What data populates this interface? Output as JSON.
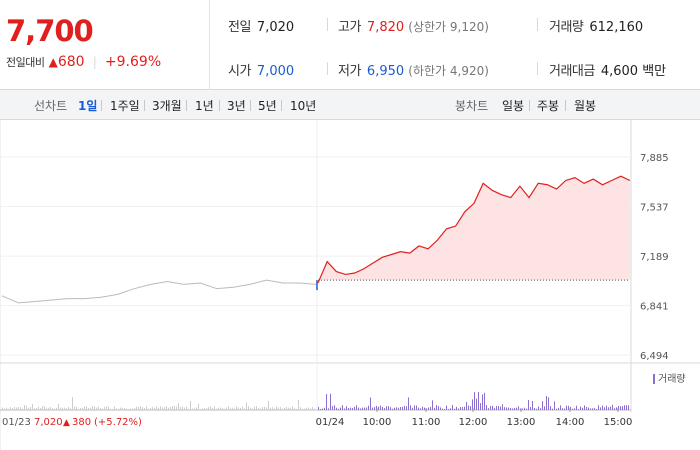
{
  "header": {
    "price": "7,700",
    "change_label": "전일대비",
    "change_arrow": "▲",
    "change_amount": "680",
    "change_percent": "+9.69%",
    "prev_close_label": "전일",
    "prev_close": "7,020",
    "high_label": "고가",
    "high": "7,820",
    "upper_limit": "(상한가 9,120)",
    "volume_label": "거래량",
    "volume": "612,160",
    "open_label": "시가",
    "open": "7,000",
    "low_label": "저가",
    "low": "6,950",
    "lower_limit": "(하한가 4,920)",
    "trade_value_label": "거래대금",
    "trade_value": "4,600 백만"
  },
  "toolbar": {
    "line_label": "선차트",
    "line_periods": [
      "1일",
      "1주일",
      "3개월",
      "1년",
      "3년",
      "5년",
      "10년"
    ],
    "active_period": "1일",
    "candle_label": "봉차트",
    "candle_periods": [
      "일봉",
      "주봉",
      "월봉"
    ]
  },
  "chart_data": {
    "type": "line",
    "y_ticks": [
      "7,885",
      "7,537",
      "7,189",
      "6,841",
      "6,494"
    ],
    "ylim": [
      6494,
      7885
    ],
    "x_labels": [
      "01/24",
      "10:00",
      "11:00",
      "12:00",
      "13:00",
      "14:00",
      "15:00"
    ],
    "prev_day": {
      "date": "01/23",
      "close": "7,020",
      "arrow": "▲",
      "change": "380",
      "change_percent": "(+5.72%)"
    },
    "volume_legend": "거래량",
    "reference_price": 7020,
    "series": [
      {
        "values": [
          6910,
          6860,
          6870,
          6880,
          6890,
          6890,
          6900,
          6920,
          6960,
          6990,
          7010,
          6990,
          7000,
          6960,
          6970,
          6990,
          7020,
          7000,
          7000,
          6990
        ],
        "color": "#bbbbbb"
      },
      {
        "values": [
          7000,
          7150,
          7080,
          7060,
          7070,
          7100,
          7140,
          7180,
          7200,
          7220,
          7210,
          7260,
          7240,
          7300,
          7380,
          7400,
          7500,
          7560,
          7700,
          7650,
          7620,
          7600,
          7680,
          7600,
          7700,
          7690,
          7660,
          7720,
          7740,
          7700,
          7730,
          7690,
          7720,
          7750,
          7720
        ],
        "color": "#e0201f"
      }
    ]
  }
}
